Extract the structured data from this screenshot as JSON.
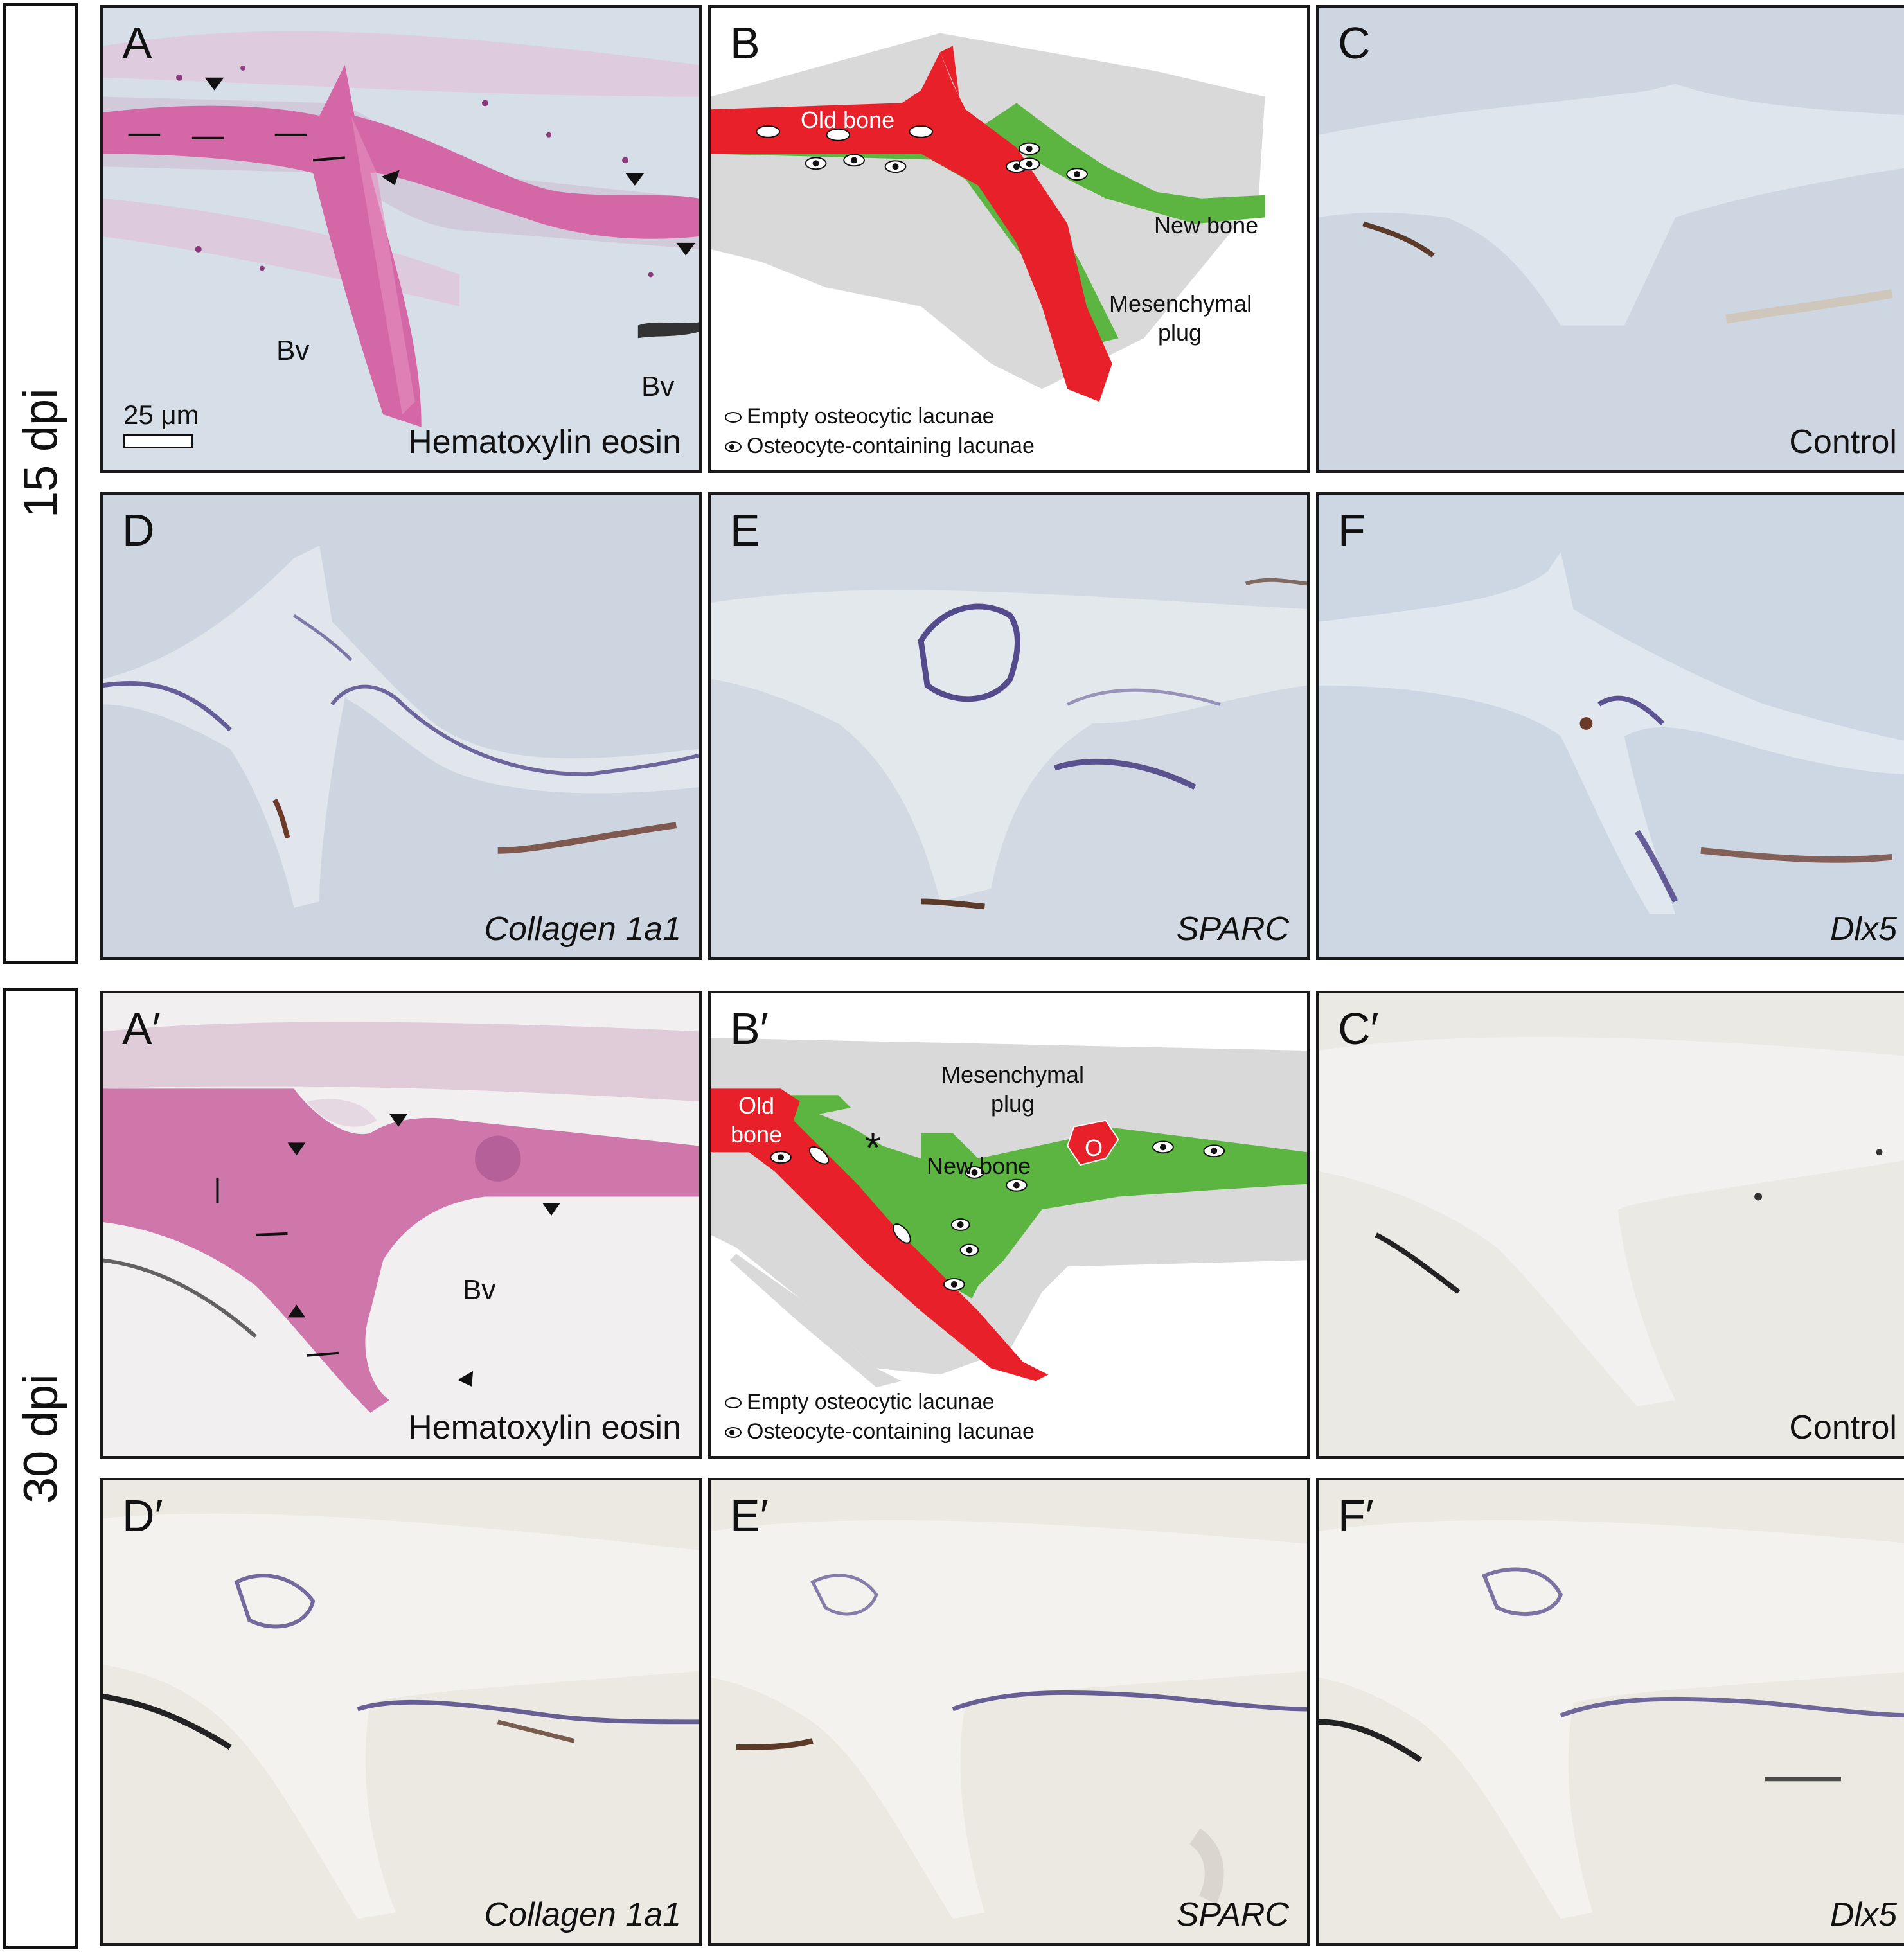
{
  "figure": {
    "groups": [
      {
        "id": "15dpi",
        "label": "15 dpi"
      },
      {
        "id": "30dpi",
        "label": "30 dpi"
      }
    ],
    "panels": {
      "A": {
        "letter": "A",
        "label": "Hematoxylin eosin",
        "bv1": "Bv",
        "bv2": "Bv",
        "scale": "25 μm"
      },
      "B": {
        "letter": "B",
        "old_bone": "Old bone",
        "new_bone": "New bone",
        "mesenchymal_plug": "Mesenchymal plug",
        "legend_empty": "Empty osteocytic lacunae",
        "legend_osteo": "Osteocyte-containing lacunae"
      },
      "C": {
        "letter": "C",
        "label": "Control"
      },
      "D": {
        "letter": "D",
        "label": "Collagen 1a1"
      },
      "E": {
        "letter": "E",
        "label": "SPARC"
      },
      "F": {
        "letter": "F",
        "label": "Dlx5"
      },
      "A2": {
        "letter": "A′",
        "label": "Hematoxylin eosin",
        "bv": "Bv"
      },
      "B2": {
        "letter": "B′",
        "old_bone": "Old bone",
        "new_bone": "New bone",
        "mesenchymal_plug": "Mesenchymal plug",
        "asterisk": "*",
        "osteoclast": "O",
        "legend_empty": "Empty osteocytic lacunae",
        "legend_osteo": "Osteocyte-containing lacunae"
      },
      "C2": {
        "letter": "C′",
        "label": "Control"
      },
      "D2": {
        "letter": "D′",
        "label": "Collagen 1a1"
      },
      "E2": {
        "letter": "E′",
        "label": "SPARC"
      },
      "F2": {
        "letter": "F′",
        "label": "Dlx5"
      }
    },
    "colors": {
      "old_bone": "#e8202a",
      "new_bone": "#5cb541",
      "plug": "#d9d9d9",
      "he_stain": "#d984b3",
      "micro_15dpi_bg": "#cdd7e3",
      "micro_30dpi_bg": "#ebe9e4",
      "in_situ_signal": "#3b2f7a"
    }
  }
}
